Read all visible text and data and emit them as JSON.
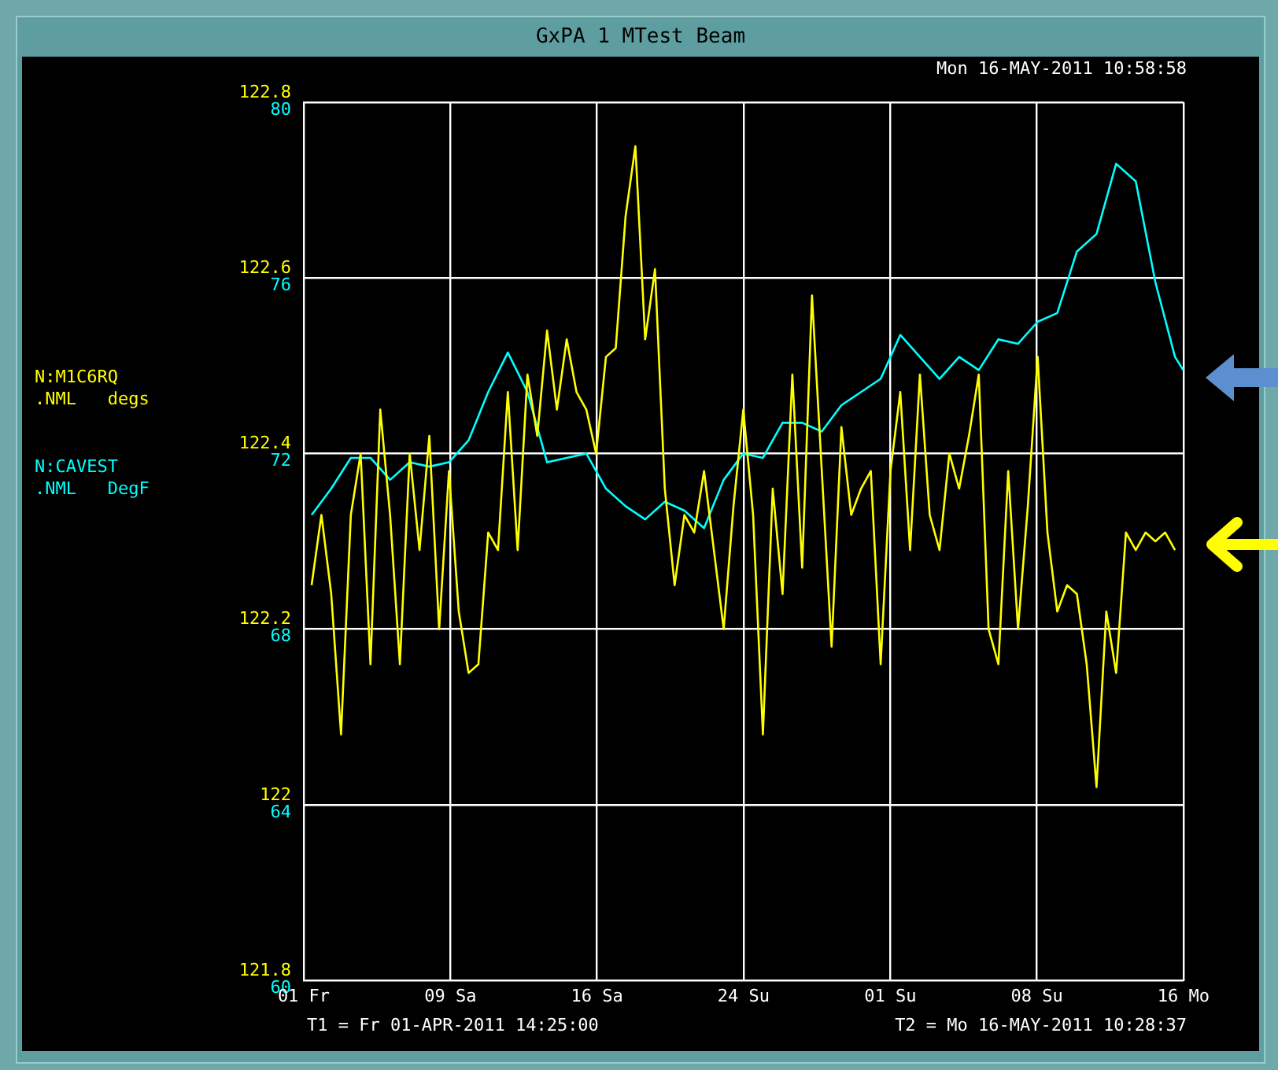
{
  "chart_data": {
    "type": "line",
    "title": "GxPA 1 MTest Beam",
    "annotations": [
      "Mon 16-MAY-2011 10:58:58",
      "T1 = Fr 01-APR-2011 14:25:00",
      "T2 = Mo 16-MAY-2011 10:28:37",
      ".NML   degs",
      ".NML   DegF"
    ],
    "legend": "left",
    "grid": true,
    "line_style": "solid",
    "xlim": [
      "2011-04-01T14:25",
      "2011-05-16T10:28:37"
    ],
    "xticks": [
      {
        "value": "2011-04-01T14:25",
        "label": "01 Fr"
      },
      {
        "value": "2011-04-09T01:45",
        "label": "09 Sa"
      },
      {
        "value": "2011-04-16T13:06",
        "label": "16 Sa"
      },
      {
        "value": "2011-04-24T00:26",
        "label": "24 Su"
      },
      {
        "value": "2011-05-01T11:47",
        "label": "01 Su"
      },
      {
        "value": "2011-05-08T23:07",
        "label": "08 Su"
      },
      {
        "value": "2011-05-16T10:28",
        "label": "16 Mo"
      }
    ],
    "ylim": [
      121.8,
      122.8
    ],
    "yticks": [
      121.8,
      122,
      122.2,
      122.4,
      122.6,
      122.8
    ],
    "y2lim": [
      60,
      80
    ],
    "y2ticks": [
      60,
      64,
      68,
      72,
      76,
      80
    ],
    "x": [
      "2011-04-02",
      "2011-04-02T12:00",
      "2011-04-03",
      "2011-04-03T12:00",
      "2011-04-04",
      "2011-04-04T12:00",
      "2011-04-05",
      "2011-04-05T12:00",
      "2011-04-06",
      "2011-04-06T12:00",
      "2011-04-07",
      "2011-04-07T12:00",
      "2011-04-08",
      "2011-04-08T12:00",
      "2011-04-09",
      "2011-04-09T12:00",
      "2011-04-10",
      "2011-04-10T12:00",
      "2011-04-11",
      "2011-04-11T12:00",
      "2011-04-12",
      "2011-04-12T12:00",
      "2011-04-13",
      "2011-04-13T12:00",
      "2011-04-14",
      "2011-04-14T12:00",
      "2011-04-15",
      "2011-04-15T12:00",
      "2011-04-16",
      "2011-04-16T12:00",
      "2011-04-17",
      "2011-04-17T12:00",
      "2011-04-18",
      "2011-04-18T12:00",
      "2011-04-19",
      "2011-04-19T12:00",
      "2011-04-20",
      "2011-04-20T12:00",
      "2011-04-21",
      "2011-04-21T12:00",
      "2011-04-22",
      "2011-04-22T12:00",
      "2011-04-23",
      "2011-04-23T12:00",
      "2011-04-24",
      "2011-04-24T12:00",
      "2011-04-25",
      "2011-04-25T12:00",
      "2011-04-26",
      "2011-04-26T12:00",
      "2011-04-27",
      "2011-04-27T12:00",
      "2011-04-28",
      "2011-04-28T12:00",
      "2011-04-29",
      "2011-04-29T12:00",
      "2011-04-30",
      "2011-04-30T12:00",
      "2011-05-01",
      "2011-05-01T12:00",
      "2011-05-02",
      "2011-05-02T12:00",
      "2011-05-03",
      "2011-05-03T12:00",
      "2011-05-04",
      "2011-05-04T12:00",
      "2011-05-05",
      "2011-05-05T12:00",
      "2011-05-06",
      "2011-05-06T12:00",
      "2011-05-07",
      "2011-05-07T12:00",
      "2011-05-08",
      "2011-05-08T12:00",
      "2011-05-09",
      "2011-05-09T12:00",
      "2011-05-10",
      "2011-05-10T12:00",
      "2011-05-11",
      "2011-05-11T12:00",
      "2011-05-12",
      "2011-05-12T12:00",
      "2011-05-13",
      "2011-05-13T12:00",
      "2011-05-14",
      "2011-05-14T12:00",
      "2011-05-15",
      "2011-05-15T12:00",
      "2011-05-16"
    ],
    "series": [
      {
        "name": "N:M1C6RQ",
        "color": "#ffff00",
        "values": [
          122.25,
          122.33,
          122.24,
          122.08,
          122.33,
          122.4,
          122.16,
          122.45,
          122.33,
          122.16,
          122.4,
          122.29,
          122.42,
          122.2,
          122.38,
          122.22,
          122.15,
          122.16,
          122.31,
          122.29,
          122.47,
          122.29,
          122.49,
          122.42,
          122.54,
          122.45,
          122.53,
          122.47,
          122.45,
          122.4,
          122.51,
          122.52,
          122.67,
          122.75,
          122.53,
          122.61,
          122.36,
          122.25,
          122.33,
          122.31,
          122.38,
          122.29,
          122.2,
          122.34,
          122.45,
          122.33,
          122.08,
          122.36,
          122.24,
          122.49,
          122.27,
          122.58,
          122.38,
          122.18,
          122.43,
          122.33,
          122.36,
          122.38,
          122.16,
          122.38,
          122.47,
          122.29,
          122.49,
          122.33,
          122.29,
          122.4,
          122.36,
          122.42,
          122.49,
          122.2,
          122.16,
          122.38,
          122.2,
          122.34,
          122.51,
          122.31,
          122.22,
          122.25,
          122.24,
          122.16,
          122.02,
          122.22,
          122.15,
          122.31,
          122.29,
          122.31,
          122.3,
          122.31,
          122.29
        ]
      },
      {
        "name": "N:CAVEST",
        "color": "#00ffff",
        "axis": "y2",
        "x": [
          "2011-04-02",
          "2011-04-03",
          "2011-04-04",
          "2011-04-05",
          "2011-04-06",
          "2011-04-07",
          "2011-04-08",
          "2011-04-09",
          "2011-04-10",
          "2011-04-11",
          "2011-04-12",
          "2011-04-13",
          "2011-04-14",
          "2011-04-15",
          "2011-04-16",
          "2011-04-17",
          "2011-04-18",
          "2011-04-19",
          "2011-04-20",
          "2011-04-21",
          "2011-04-22",
          "2011-04-23",
          "2011-04-24",
          "2011-04-25",
          "2011-04-26",
          "2011-04-27",
          "2011-04-28",
          "2011-04-29",
          "2011-04-30",
          "2011-05-01",
          "2011-05-02",
          "2011-05-03",
          "2011-05-04",
          "2011-05-05",
          "2011-05-06",
          "2011-05-07",
          "2011-05-08",
          "2011-05-09",
          "2011-05-10",
          "2011-05-11",
          "2011-05-12",
          "2011-05-13",
          "2011-05-14",
          "2011-05-15",
          "2011-05-16",
          "2011-05-16T10:00"
        ],
        "values": [
          70.6,
          71.2,
          71.9,
          71.9,
          71.4,
          71.8,
          71.7,
          71.8,
          72.3,
          73.4,
          74.3,
          73.4,
          71.8,
          71.9,
          72.0,
          71.2,
          70.8,
          70.5,
          70.9,
          70.7,
          70.3,
          71.4,
          72.0,
          71.9,
          72.7,
          72.7,
          72.5,
          73.1,
          73.4,
          73.7,
          74.7,
          74.2,
          73.7,
          74.2,
          73.9,
          74.6,
          74.5,
          75.0,
          75.2,
          76.6,
          77.0,
          78.6,
          78.2,
          75.9,
          74.2,
          73.9
        ]
      }
    ]
  }
}
